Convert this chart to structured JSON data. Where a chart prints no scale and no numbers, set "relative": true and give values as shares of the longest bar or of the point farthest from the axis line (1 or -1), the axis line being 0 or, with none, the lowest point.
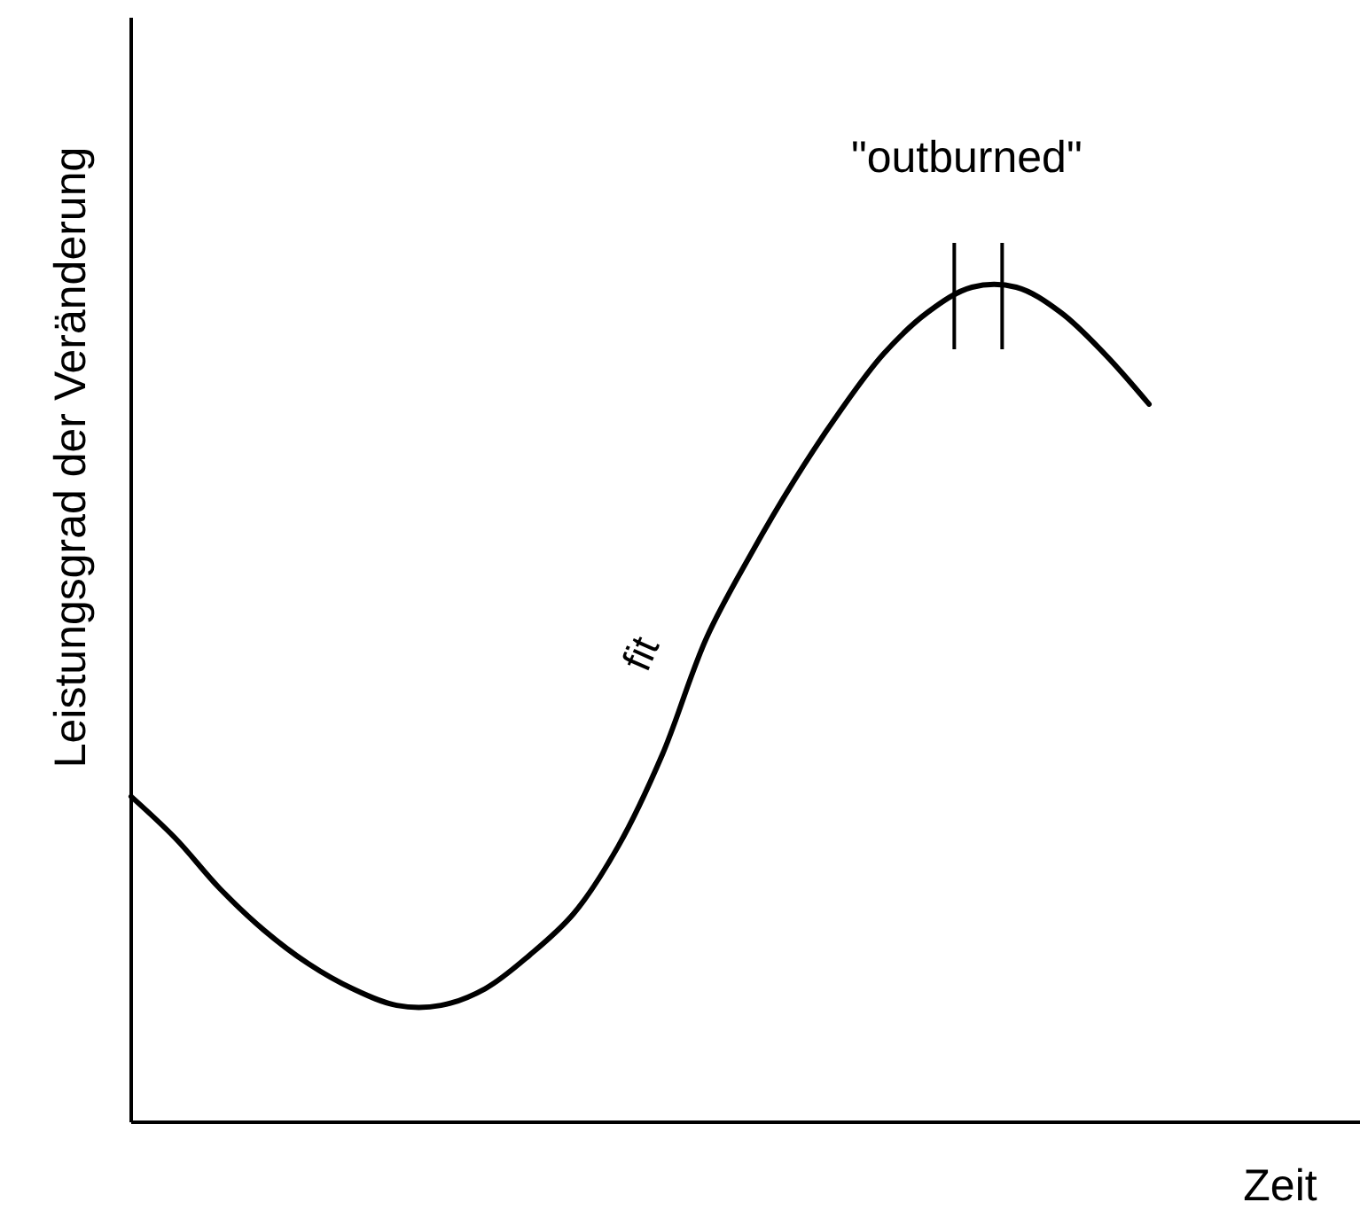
{
  "chart_data": {
    "type": "line",
    "relative": true,
    "xlabel": "Zeit",
    "ylabel": "Leistungsgrad der Veränderung",
    "categories": [
      null,
      null,
      null,
      null,
      null,
      null,
      null,
      null,
      null,
      null,
      null,
      null,
      null,
      null,
      null,
      null,
      null,
      null,
      null,
      null,
      null,
      null,
      null,
      null
    ],
    "values": [
      0.39,
      0.34,
      0.28,
      0.23,
      0.19,
      0.16,
      0.14,
      0.14,
      0.16,
      0.2,
      0.25,
      0.33,
      0.44,
      0.58,
      0.68,
      0.77,
      0.85,
      0.92,
      0.97,
      1,
      1,
      0.97,
      0.92,
      0.86
    ],
    "color": "#000000",
    "annotations": [
      "\"outburned\"",
      "fit"
    ]
  }
}
